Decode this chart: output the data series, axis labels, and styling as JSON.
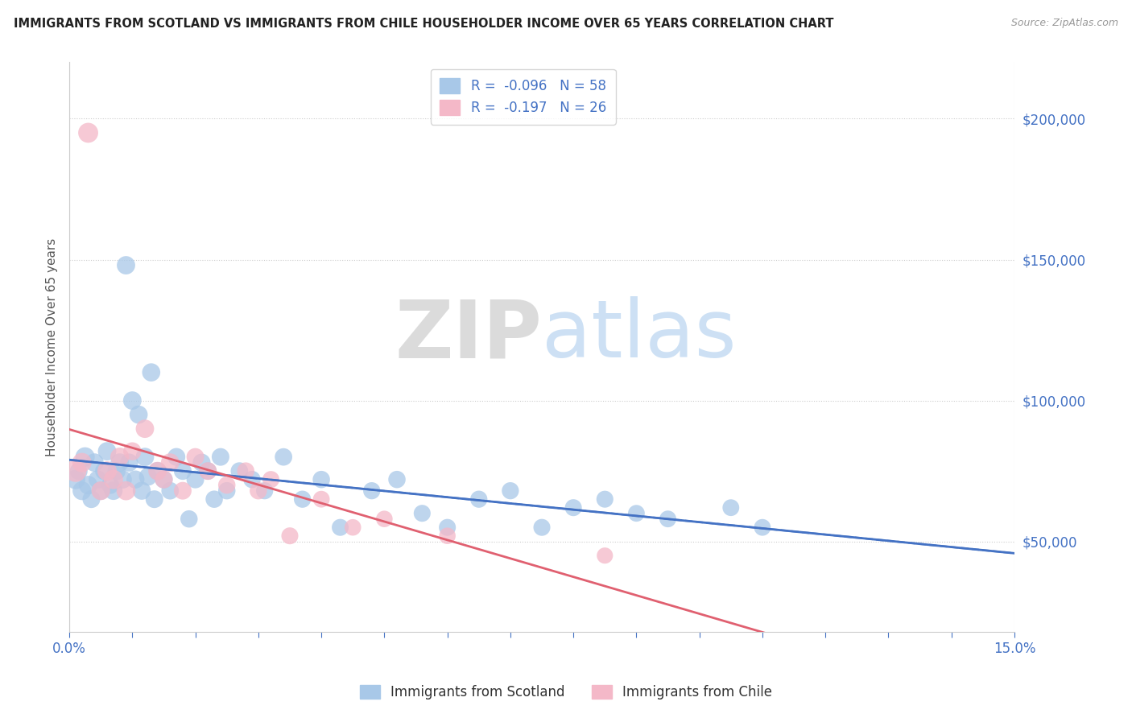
{
  "title": "IMMIGRANTS FROM SCOTLAND VS IMMIGRANTS FROM CHILE HOUSEHOLDER INCOME OVER 65 YEARS CORRELATION CHART",
  "source": "Source: ZipAtlas.com",
  "ylabel": "Householder Income Over 65 years",
  "xlim": [
    0.0,
    15.0
  ],
  "ylim": [
    18000,
    220000
  ],
  "yticks": [
    50000,
    100000,
    150000,
    200000
  ],
  "ytick_labels": [
    "$50,000",
    "$100,000",
    "$150,000",
    "$200,000"
  ],
  "scotland_R": -0.096,
  "scotland_N": 58,
  "chile_R": -0.197,
  "chile_N": 26,
  "legend_scotland": "Immigrants from Scotland",
  "legend_chile": "Immigrants from Chile",
  "color_scotland": "#a8c8e8",
  "color_chile": "#f4b8c8",
  "color_scotland_line": "#4472c4",
  "color_chile_line": "#e06070",
  "color_axis_ticks": "#4472c4",
  "watermark_zip": "ZIP",
  "watermark_atlas": "atlas",
  "scotland_x": [
    0.1,
    0.15,
    0.2,
    0.25,
    0.3,
    0.35,
    0.4,
    0.45,
    0.5,
    0.55,
    0.6,
    0.65,
    0.7,
    0.75,
    0.8,
    0.85,
    0.9,
    0.95,
    1.0,
    1.05,
    1.1,
    1.15,
    1.2,
    1.25,
    1.3,
    1.35,
    1.4,
    1.5,
    1.6,
    1.7,
    1.8,
    1.9,
    2.0,
    2.1,
    2.2,
    2.3,
    2.4,
    2.5,
    2.7,
    2.9,
    3.1,
    3.4,
    3.7,
    4.0,
    4.3,
    4.8,
    5.2,
    5.6,
    6.0,
    6.5,
    7.0,
    7.5,
    8.0,
    8.5,
    9.0,
    9.5,
    10.5,
    11.0
  ],
  "scotland_y": [
    72000,
    75000,
    68000,
    80000,
    70000,
    65000,
    78000,
    72000,
    68000,
    75000,
    82000,
    70000,
    68000,
    75000,
    78000,
    72000,
    148000,
    78000,
    100000,
    72000,
    95000,
    68000,
    80000,
    73000,
    110000,
    65000,
    75000,
    72000,
    68000,
    80000,
    75000,
    58000,
    72000,
    78000,
    75000,
    65000,
    80000,
    68000,
    75000,
    72000,
    68000,
    80000,
    65000,
    72000,
    55000,
    68000,
    72000,
    60000,
    55000,
    65000,
    68000,
    55000,
    62000,
    65000,
    60000,
    58000,
    62000,
    55000
  ],
  "scotland_size": [
    300,
    250,
    280,
    300,
    280,
    250,
    270,
    260,
    270,
    250,
    270,
    250,
    270,
    260,
    270,
    260,
    270,
    260,
    270,
    260,
    265,
    260,
    270,
    260,
    265,
    250,
    260,
    255,
    245,
    255,
    250,
    240,
    250,
    255,
    245,
    240,
    250,
    240,
    245,
    240,
    235,
    245,
    235,
    240,
    230,
    235,
    240,
    230,
    230,
    235,
    235,
    230,
    230,
    230,
    225,
    225,
    225,
    225
  ],
  "chile_x": [
    0.1,
    0.2,
    0.3,
    0.5,
    0.6,
    0.7,
    0.8,
    0.9,
    1.0,
    1.2,
    1.4,
    1.5,
    1.6,
    1.8,
    2.0,
    2.2,
    2.5,
    2.8,
    3.0,
    3.2,
    3.5,
    4.0,
    4.5,
    5.0,
    6.0,
    8.5
  ],
  "chile_y": [
    75000,
    78000,
    195000,
    68000,
    75000,
    72000,
    80000,
    68000,
    82000,
    90000,
    75000,
    72000,
    78000,
    68000,
    80000,
    75000,
    70000,
    75000,
    68000,
    72000,
    52000,
    65000,
    55000,
    58000,
    52000,
    45000
  ],
  "chile_size": [
    380,
    300,
    320,
    280,
    300,
    300,
    280,
    290,
    260,
    270,
    270,
    255,
    270,
    250,
    250,
    250,
    240,
    240,
    240,
    230,
    230,
    225,
    220,
    220,
    220,
    210
  ]
}
